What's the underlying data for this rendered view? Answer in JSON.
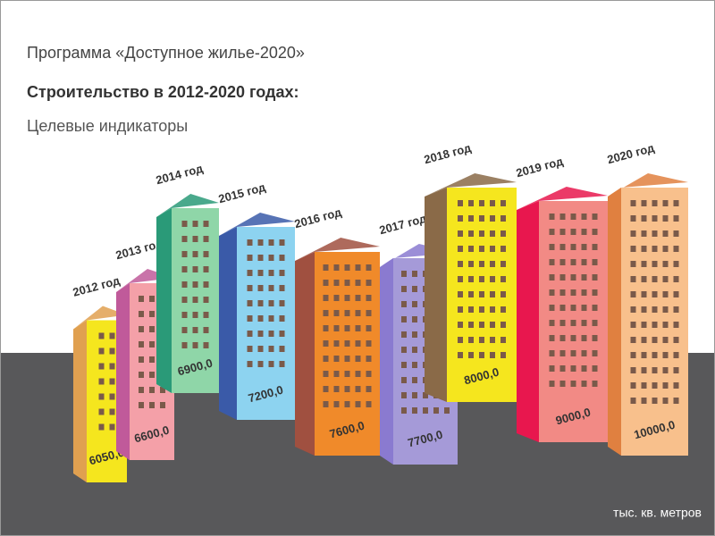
{
  "chart_data": {
    "type": "bar",
    "title": "Программа «Доступное жилье-2020»",
    "subtitle": "Строительство в 2012-2020 годах:",
    "caption": "Целевые индикаторы",
    "unit_note": "тыс. кв. метров",
    "categories": [
      "2012 год",
      "2013 год",
      "2014 год",
      "2015 год",
      "2016 год",
      "2017 год",
      "2018 год",
      "2019 год",
      "2020 год"
    ],
    "values": [
      6050,
      6600,
      6900,
      7200,
      7600,
      7700,
      8000,
      9000,
      10000
    ],
    "value_labels": [
      "6050,0",
      "6600,0",
      "6900,0",
      "7200,0",
      "7600,0",
      "7700,0",
      "8000,0",
      "9000,0",
      "10000,0"
    ],
    "colors": [
      "#f5e61e",
      "#f4a0a8",
      "#8fd6a8",
      "#8dd3f0",
      "#f08a2a",
      "#a59ad8",
      "#f5e61e",
      "#f28a85",
      "#f8c08c"
    ],
    "side_colors": [
      "#e0a050",
      "#c05a9a",
      "#2a9a78",
      "#3a5aa8",
      "#a05040",
      "#8a7ad0",
      "#8a6a48",
      "#e8174e",
      "#e08040"
    ]
  }
}
